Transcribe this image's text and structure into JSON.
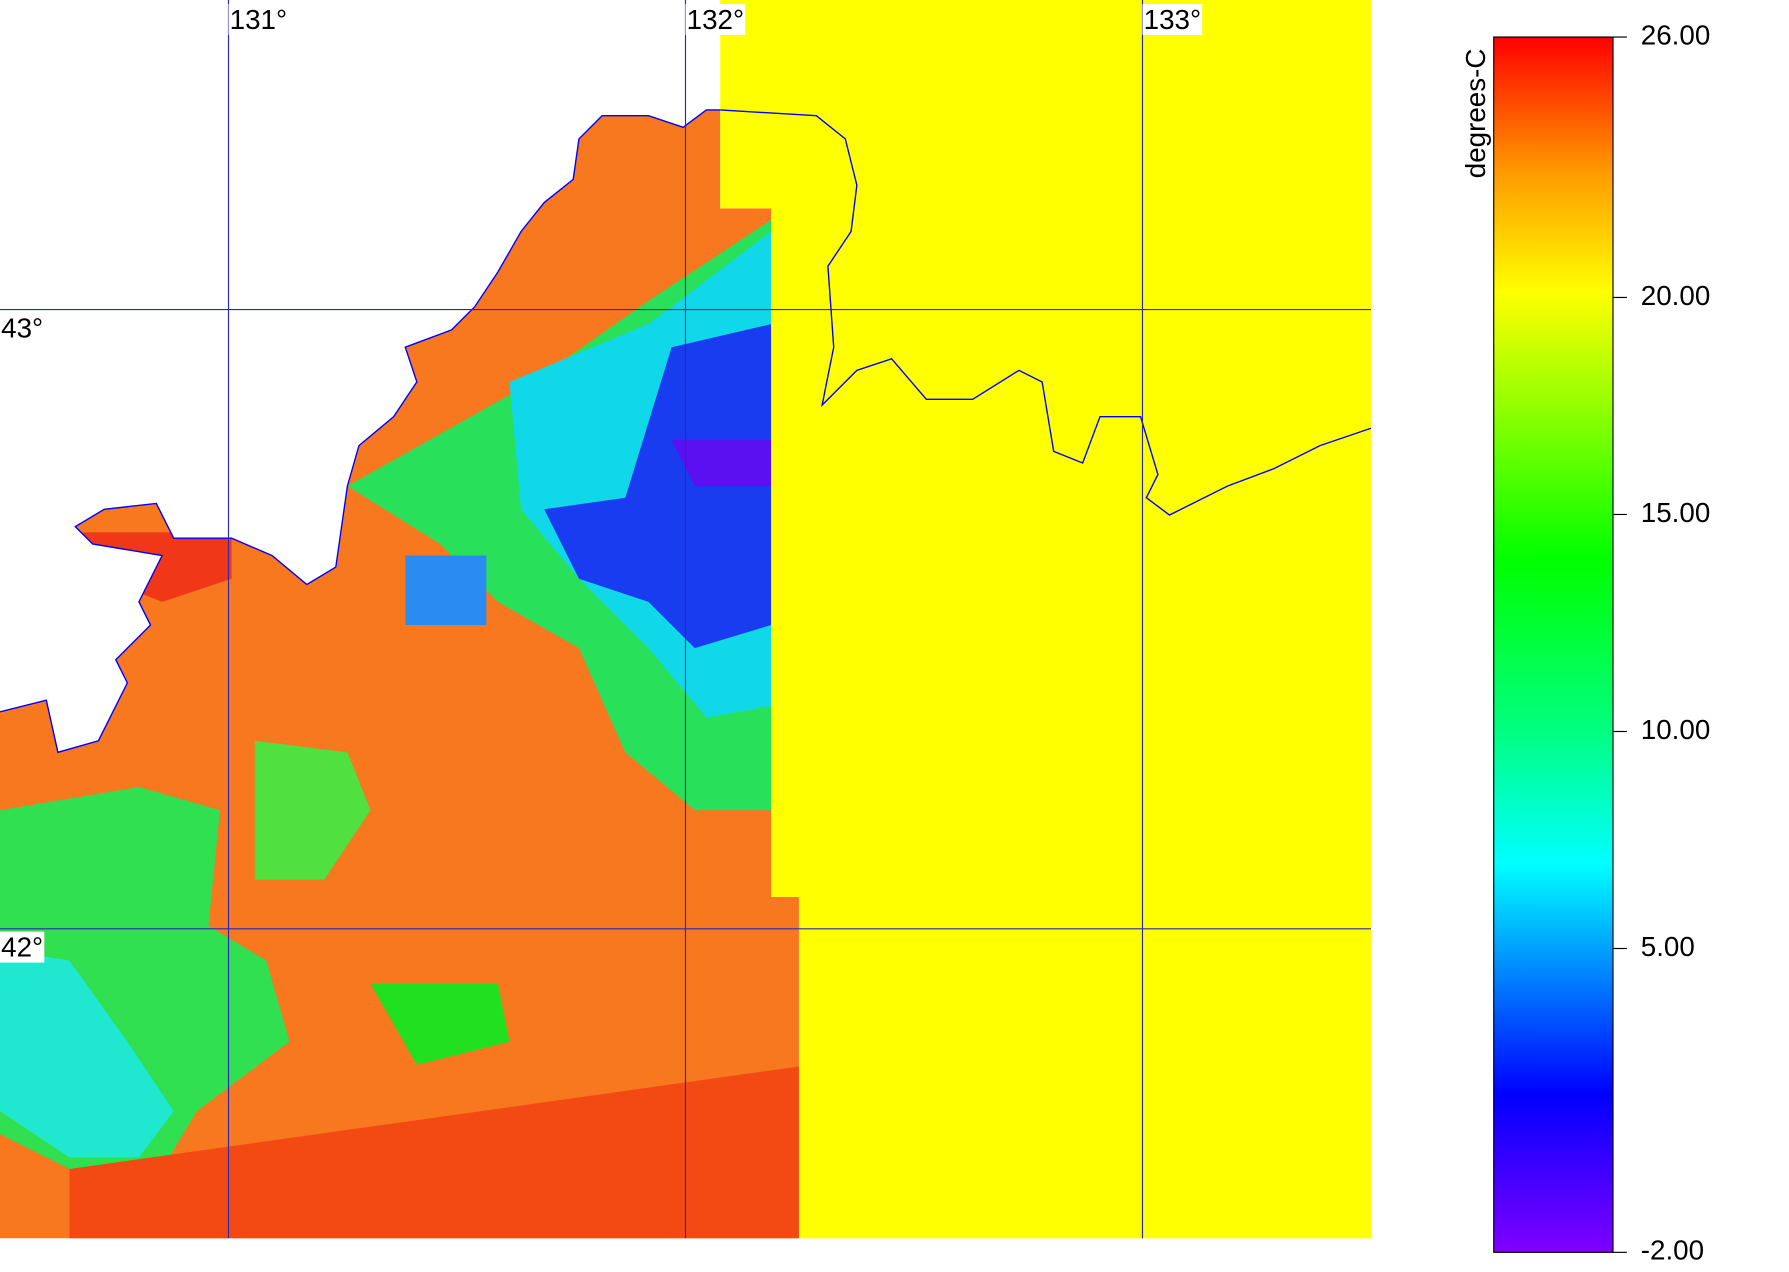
{
  "map": {
    "lon_range": [
      130.5,
      133.5
    ],
    "lat_range": [
      43.5,
      41.5
    ],
    "lon_ticks": [
      {
        "value": 131,
        "label": "131°"
      },
      {
        "value": 132,
        "label": "132°"
      },
      {
        "value": 133,
        "label": "133°"
      }
    ],
    "lat_ticks": [
      {
        "value": 43,
        "label": "43°"
      },
      {
        "value": 42,
        "label": "42°"
      }
    ],
    "colorbar": {
      "label": "degrees-C",
      "range": [
        -2,
        26
      ],
      "ticks": [
        {
          "value": 26,
          "label": "26.00"
        },
        {
          "value": 20,
          "label": "20.00"
        },
        {
          "value": 15,
          "label": "15.00"
        },
        {
          "value": 10,
          "label": "10.00"
        },
        {
          "value": 5,
          "label": "5.00"
        },
        {
          "value": -2,
          "label": "-2.00"
        }
      ]
    }
  }
}
